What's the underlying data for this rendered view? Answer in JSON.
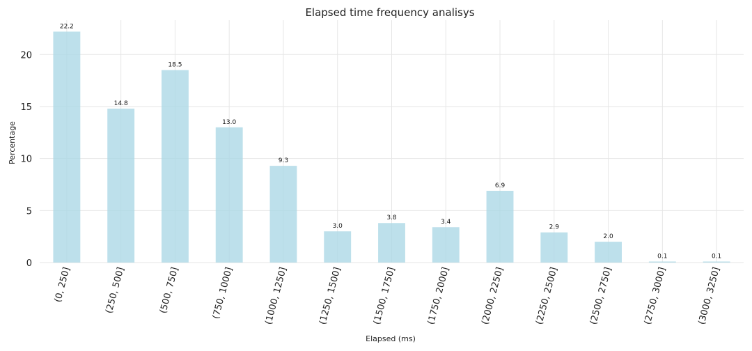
{
  "chart_data": {
    "type": "bar",
    "title": "Elapsed time frequency analisys",
    "xlabel": "Elapsed (ms)",
    "ylabel": "Percentage",
    "categories": [
      "(0, 250]",
      "(250, 500]",
      "(500, 750]",
      "(750, 1000]",
      "(1000, 1250]",
      "(1250, 1500]",
      "(1500, 1750]",
      "(1750, 2000]",
      "(2000, 2250]",
      "(2250, 2500]",
      "(2500, 2750]",
      "(2750, 3000]",
      "(3000, 3250]"
    ],
    "values": [
      22.2,
      14.8,
      18.5,
      13.0,
      9.3,
      3.0,
      3.8,
      3.4,
      6.9,
      2.9,
      2.0,
      0.1,
      0.1
    ],
    "value_labels": [
      "22.2",
      "14.8",
      "18.5",
      "13.0",
      "9.3",
      "3.0",
      "3.8",
      "3.4",
      "6.9",
      "2.9",
      "2.0",
      "0.1",
      "0.1"
    ],
    "yticks": [
      0,
      5,
      10,
      15,
      20
    ],
    "ylim": [
      0,
      23.3
    ],
    "grid": true,
    "bar_color": "#add8e6"
  }
}
